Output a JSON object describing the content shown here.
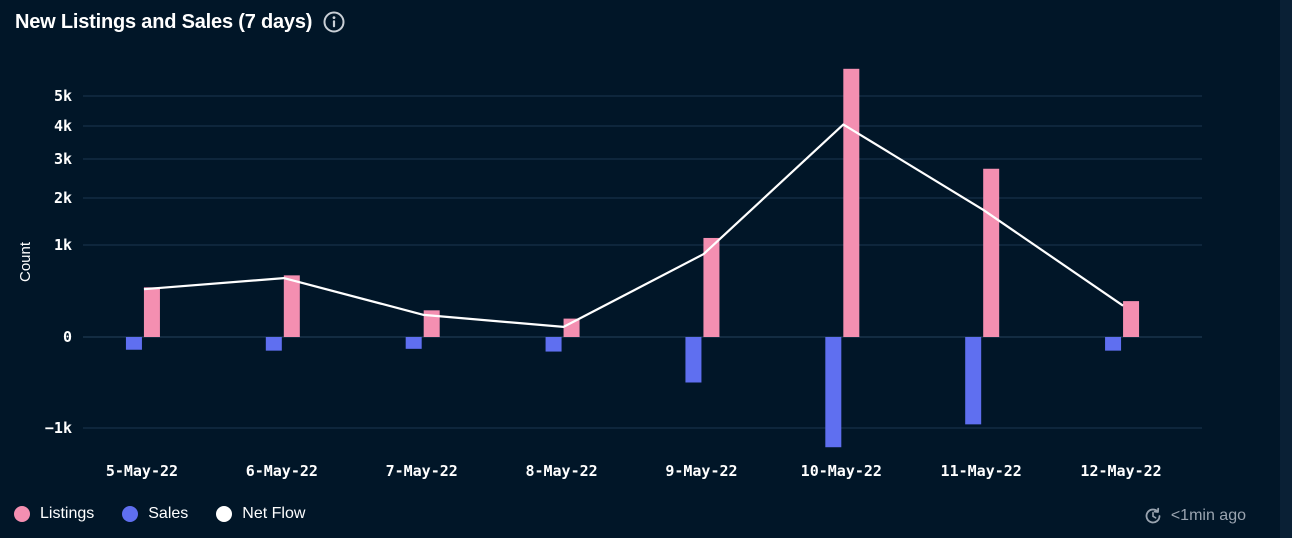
{
  "header": {
    "title": "New Listings and Sales (7 days)",
    "info_icon": "info-icon"
  },
  "chart_data": {
    "type": "bar",
    "title": "New Listings and Sales (7 days)",
    "ylabel": "Count",
    "xlabel": "",
    "y_scale": "symlog",
    "y_ticks": [
      {
        "value": -1000,
        "label": "−1k"
      },
      {
        "value": 0,
        "label": "0"
      },
      {
        "value": 1000,
        "label": "1k"
      },
      {
        "value": 2000,
        "label": "2k"
      },
      {
        "value": 3000,
        "label": "3k"
      },
      {
        "value": 4000,
        "label": "4k"
      },
      {
        "value": 5000,
        "label": "5k"
      }
    ],
    "ylim": [
      -1500,
      6000
    ],
    "grid": true,
    "legend_position": "bottom-left",
    "categories": [
      "5-May-22",
      "6-May-22",
      "7-May-22",
      "8-May-22",
      "9-May-22",
      "10-May-22",
      "11-May-22",
      "12-May-22"
    ],
    "series": [
      {
        "name": "Listings",
        "type": "bar",
        "color": "#f48fb1",
        "values": [
          540,
          670,
          290,
          200,
          1150,
          6200,
          2750,
          390
        ]
      },
      {
        "name": "Sales",
        "type": "bar",
        "color": "#5f6ff0",
        "values": [
          -140,
          -150,
          -130,
          -160,
          -500,
          -1310,
          -960,
          -150
        ]
      },
      {
        "name": "Net Flow",
        "type": "line",
        "color": "#ffffff",
        "values": [
          520,
          640,
          240,
          110,
          900,
          4050,
          1750,
          340
        ]
      }
    ]
  },
  "legend": {
    "items": [
      {
        "label": "Listings",
        "color": "#f48fb1"
      },
      {
        "label": "Sales",
        "color": "#5f6ff0"
      },
      {
        "label": "Net Flow",
        "color": "#ffffff"
      }
    ]
  },
  "footer": {
    "updated": "<1min ago",
    "updated_icon": "refresh-clock-icon"
  }
}
